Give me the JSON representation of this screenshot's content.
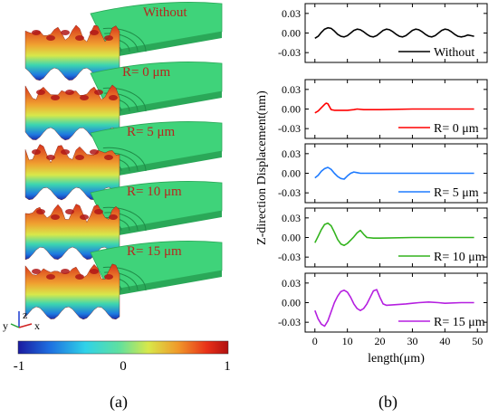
{
  "figure": {
    "panel_a_label": "(a)",
    "panel_b_label": "(b)"
  },
  "panel_a": {
    "layer_labels": [
      "Without",
      "R= 0 μm",
      "R= 5 μm",
      "R= 10 μm",
      "R= 15 μm"
    ],
    "axes_triad": {
      "z": "z",
      "y": "y",
      "x": "x"
    },
    "colorbar": {
      "min_label": "-1",
      "mid_label": "0",
      "max_label": "1",
      "colors": [
        "#1a1aa0",
        "#1e6fe0",
        "#2fd2e8",
        "#5fe0a0",
        "#d8e84a",
        "#f09a2a",
        "#e83018",
        "#b01010"
      ]
    },
    "colors": {
      "slab": "#3fd37a",
      "slab_dark": "#2aa858",
      "text": "#b5281e"
    }
  },
  "chart_data": {
    "type": "line",
    "xlabel": "length(μm)",
    "ylabel": "Z-direction Displacement(nm)",
    "xlim": [
      -3,
      53
    ],
    "x_ticks": [
      0,
      10,
      20,
      30,
      40,
      50
    ],
    "x_tick_labels": [
      "0",
      "10",
      "20",
      "30",
      "40",
      "50"
    ],
    "ylim": [
      -0.045,
      0.045
    ],
    "y_ticks": [
      0.03,
      0.0,
      -0.03
    ],
    "y_tick_labels": [
      "0.03",
      "0.00",
      "-0.03"
    ],
    "grid": false,
    "legend_position": "bottom-right",
    "panels": [
      {
        "name": "Without",
        "color": "#000000",
        "x": [
          0,
          1,
          2,
          3,
          4,
          5,
          6,
          7,
          8,
          9,
          10,
          11,
          12,
          13,
          14,
          15,
          16,
          17,
          18,
          19,
          20,
          21,
          22,
          23,
          24,
          25,
          26,
          27,
          28,
          29,
          30,
          31,
          32,
          33,
          34,
          35,
          36,
          37,
          38,
          39,
          40,
          41,
          42,
          43,
          44,
          45,
          46,
          47,
          48,
          49
        ],
        "values": [
          -0.008,
          -0.005,
          0.001,
          0.006,
          0.008,
          0.007,
          0.003,
          -0.002,
          -0.005,
          -0.006,
          -0.004,
          0.0,
          0.004,
          0.006,
          0.005,
          0.002,
          -0.002,
          -0.005,
          -0.006,
          -0.004,
          0.0,
          0.004,
          0.006,
          0.005,
          0.002,
          -0.002,
          -0.005,
          -0.006,
          -0.004,
          0.0,
          0.004,
          0.006,
          0.005,
          0.002,
          -0.002,
          -0.005,
          -0.006,
          -0.004,
          0.0,
          0.004,
          0.006,
          0.005,
          0.002,
          -0.002,
          -0.005,
          -0.006,
          -0.005,
          -0.003,
          -0.004,
          -0.005
        ]
      },
      {
        "name": "R= 0 μm",
        "color": "#ff0000",
        "x": [
          0,
          1,
          2,
          3,
          3.5,
          4,
          5,
          6,
          8,
          10,
          12,
          13,
          15,
          20,
          30,
          40,
          49
        ],
        "values": [
          -0.006,
          -0.003,
          0.002,
          0.007,
          0.009,
          0.008,
          -0.001,
          -0.002,
          -0.002,
          -0.002,
          -0.001,
          0.0,
          -0.001,
          -0.001,
          0.0,
          0.0,
          0.0
        ]
      },
      {
        "name": "R= 5 μm",
        "color": "#1e7bff",
        "x": [
          0,
          1,
          2,
          3,
          4,
          5,
          6,
          7,
          8,
          9,
          10,
          11,
          12,
          13,
          14,
          16,
          20,
          30,
          40,
          49
        ],
        "values": [
          -0.007,
          -0.003,
          0.003,
          0.007,
          0.009,
          0.006,
          0.0,
          -0.005,
          -0.008,
          -0.009,
          -0.004,
          0.0,
          0.002,
          0.001,
          0.0,
          0.0,
          0.0,
          0.0,
          0.0,
          0.0
        ]
      },
      {
        "name": "R= 10 μm",
        "color": "#33b41e",
        "x": [
          0,
          1,
          2,
          3,
          4,
          5,
          6,
          7,
          8,
          9,
          10,
          11,
          12,
          13,
          14,
          15,
          16,
          18,
          20,
          30,
          40,
          49
        ],
        "values": [
          -0.008,
          0.002,
          0.012,
          0.02,
          0.022,
          0.018,
          0.008,
          -0.003,
          -0.01,
          -0.012,
          -0.009,
          -0.004,
          0.001,
          0.007,
          0.011,
          0.005,
          0.0,
          -0.001,
          -0.001,
          0.0,
          0.0,
          0.0
        ]
      },
      {
        "name": "R= 15 μm",
        "color": "#b51fe0",
        "x": [
          0,
          1,
          2,
          3,
          4,
          5,
          6,
          7,
          8,
          9,
          10,
          11,
          12,
          13,
          14,
          15,
          16,
          17,
          18,
          19,
          20,
          21,
          22,
          25,
          28,
          30,
          32,
          35,
          38,
          40,
          45,
          49
        ],
        "values": [
          -0.012,
          -0.025,
          -0.033,
          -0.036,
          -0.028,
          -0.014,
          0.0,
          0.01,
          0.017,
          0.019,
          0.016,
          0.008,
          -0.002,
          -0.009,
          -0.012,
          -0.009,
          -0.002,
          0.008,
          0.018,
          0.02,
          0.008,
          -0.002,
          -0.004,
          -0.003,
          -0.002,
          -0.001,
          0.0,
          0.001,
          0.0,
          -0.001,
          0.0,
          0.0
        ]
      }
    ]
  }
}
